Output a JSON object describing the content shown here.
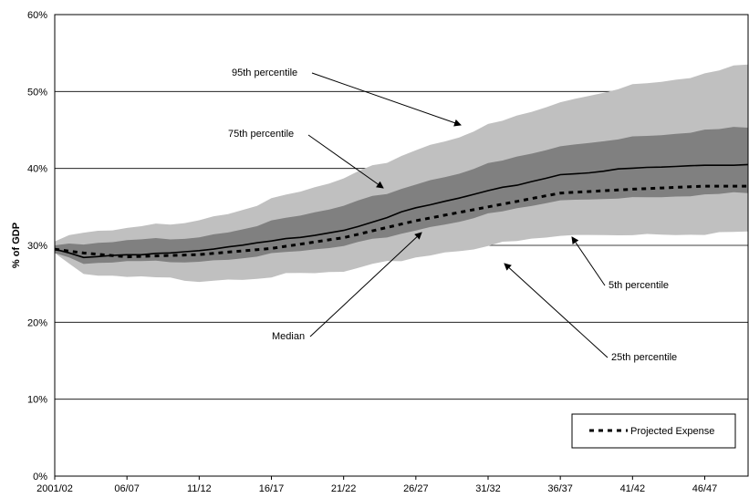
{
  "chart_data": {
    "type": "area",
    "ylabel": "% of GDP",
    "ylim": [
      0,
      60
    ],
    "y_ticks": [
      "0%",
      "10%",
      "20%",
      "30%",
      "40%",
      "50%",
      "60%"
    ],
    "x_ticks": [
      "2001/02",
      "06/07",
      "11/12",
      "16/17",
      "21/22",
      "26/27",
      "31/32",
      "36/37",
      "41/42",
      "46/47"
    ],
    "x_start_year": 2001,
    "x_end_year": 2049,
    "grid": "horizontal",
    "colors": {
      "outer_band": "#c0c0c0",
      "inner_band": "#808080",
      "median": "#000000",
      "projected": "#000000"
    },
    "series": [
      {
        "name": "95th percentile",
        "x": [
          2001,
          2003,
          2006,
          2011,
          2016,
          2021,
          2026,
          2031,
          2036,
          2041,
          2046,
          2049
        ],
        "values": [
          30.5,
          31.5,
          32.0,
          33.5,
          35.8,
          38.5,
          42.5,
          45.5,
          48.5,
          51.0,
          52.3,
          53.5
        ]
      },
      {
        "name": "75th percentile",
        "x": [
          2001,
          2003,
          2006,
          2011,
          2016,
          2021,
          2026,
          2031,
          2036,
          2041,
          2046,
          2049
        ],
        "values": [
          30.0,
          30.0,
          30.5,
          31.2,
          33.0,
          35.0,
          38.0,
          40.5,
          42.8,
          44.2,
          45.0,
          45.3
        ]
      },
      {
        "name": "Median",
        "x": [
          2001,
          2003,
          2006,
          2011,
          2016,
          2021,
          2026,
          2031,
          2036,
          2041,
          2046,
          2049
        ],
        "values": [
          29.5,
          28.5,
          28.8,
          29.2,
          30.5,
          32.0,
          34.8,
          37.0,
          39.2,
          40.0,
          40.4,
          40.5
        ]
      },
      {
        "name": "25th percentile",
        "x": [
          2001,
          2003,
          2006,
          2011,
          2016,
          2021,
          2026,
          2031,
          2036,
          2041,
          2046,
          2049
        ],
        "values": [
          29.0,
          27.5,
          27.8,
          28.0,
          28.8,
          29.8,
          32.0,
          34.0,
          35.8,
          36.3,
          36.6,
          36.8
        ]
      },
      {
        "name": "5th percentile",
        "x": [
          2001,
          2003,
          2006,
          2011,
          2016,
          2021,
          2026,
          2031,
          2036,
          2041,
          2046,
          2049
        ],
        "values": [
          29.0,
          26.0,
          25.8,
          25.5,
          26.0,
          26.5,
          28.5,
          30.0,
          31.2,
          31.5,
          31.6,
          31.8
        ]
      },
      {
        "name": "Projected Expense",
        "x": [
          2001,
          2003,
          2006,
          2011,
          2016,
          2021,
          2026,
          2031,
          2036,
          2041,
          2046,
          2049
        ],
        "values": [
          29.5,
          29.0,
          28.5,
          28.8,
          29.6,
          31.0,
          33.2,
          35.0,
          36.8,
          37.3,
          37.7,
          37.7
        ]
      }
    ],
    "annotations": [
      "95th percentile",
      "75th percentile",
      "Median",
      "5th percentile",
      "25th percentile"
    ],
    "legend": {
      "label": "Projected Expense",
      "placement": "bottom-right"
    }
  }
}
